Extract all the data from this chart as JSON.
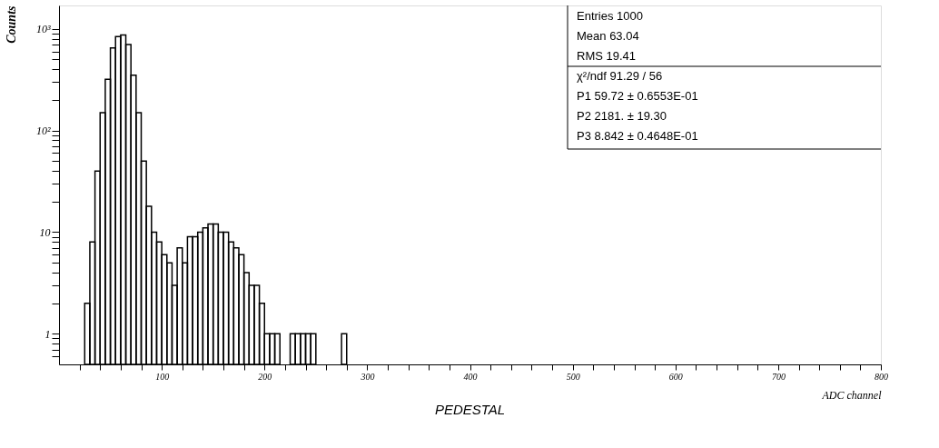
{
  "chart_data": {
    "type": "histogram",
    "title": "PEDESTAL",
    "xlabel": "ADC channel",
    "ylabel": "Counts",
    "bins": [
      20,
      25,
      30,
      35,
      40,
      45,
      50,
      55,
      60,
      65,
      70,
      75,
      80,
      85,
      90,
      95,
      100,
      105,
      110,
      115,
      120,
      125,
      130,
      135,
      140,
      145,
      150,
      155,
      160,
      165,
      170,
      175,
      180,
      185,
      190,
      195,
      200,
      205,
      210,
      215,
      220,
      225,
      230,
      235,
      240,
      245,
      250,
      255,
      260,
      265,
      270,
      275,
      280
    ],
    "values": [
      null,
      2,
      8,
      40,
      150,
      320,
      650,
      840,
      870,
      700,
      350,
      150,
      50,
      18,
      10,
      8,
      6,
      5,
      3,
      7,
      5,
      9,
      9,
      10,
      11,
      12,
      12,
      10,
      10,
      8,
      7,
      6,
      4,
      3,
      3,
      2,
      1,
      1,
      1,
      null,
      null,
      1,
      1,
      1,
      1,
      1,
      null,
      null,
      null,
      null,
      null,
      1
    ],
    "color": "#000000",
    "log": "y",
    "grid": false,
    "xlim": [
      0,
      800
    ],
    "xticks": [
      {
        "value": 20,
        "label": null
      },
      {
        "value": 40,
        "label": null
      },
      {
        "value": 60,
        "label": null
      },
      {
        "value": 80,
        "label": null
      },
      100,
      {
        "value": 120,
        "label": null
      },
      {
        "value": 140,
        "label": null
      },
      {
        "value": 160,
        "label": null
      },
      {
        "value": 180,
        "label": null
      },
      200,
      {
        "value": 220,
        "label": null
      },
      {
        "value": 240,
        "label": null
      },
      {
        "value": 260,
        "label": null
      },
      {
        "value": 280,
        "label": null
      },
      300,
      {
        "value": 320,
        "label": null
      },
      {
        "value": 340,
        "label": null
      },
      {
        "value": 360,
        "label": null
      },
      {
        "value": 380,
        "label": null
      },
      400,
      {
        "value": 420,
        "label": null
      },
      {
        "value": 440,
        "label": null
      },
      {
        "value": 460,
        "label": null
      },
      {
        "value": 480,
        "label": null
      },
      500,
      {
        "value": 520,
        "label": null
      },
      {
        "value": 540,
        "label": null
      },
      {
        "value": 560,
        "label": null
      },
      {
        "value": 580,
        "label": null
      },
      600,
      {
        "value": 620,
        "label": null
      },
      {
        "value": 640,
        "label": null
      },
      {
        "value": 660,
        "label": null
      },
      {
        "value": 680,
        "label": null
      },
      700,
      {
        "value": 720,
        "label": null
      },
      {
        "value": 740,
        "label": null
      },
      {
        "value": 760,
        "label": null
      },
      {
        "value": 780,
        "label": null
      },
      800
    ],
    "ylim": [
      0.5,
      1700
    ],
    "yticks": [
      {
        "value": 0.6,
        "label": null
      },
      {
        "value": 0.7,
        "label": null
      },
      {
        "value": 0.8,
        "label": null
      },
      {
        "value": 0.9,
        "label": null
      },
      1,
      {
        "value": 2,
        "label": null
      },
      {
        "value": 3,
        "label": null
      },
      {
        "value": 4,
        "label": null
      },
      {
        "value": 5,
        "label": null
      },
      {
        "value": 6,
        "label": null
      },
      {
        "value": 7,
        "label": null
      },
      {
        "value": 8,
        "label": null
      },
      {
        "value": 9,
        "label": null
      },
      10,
      {
        "value": 20,
        "label": null
      },
      {
        "value": 30,
        "label": null
      },
      {
        "value": 40,
        "label": null
      },
      {
        "value": 50,
        "label": null
      },
      {
        "value": 60,
        "label": null
      },
      {
        "value": 70,
        "label": null
      },
      {
        "value": 80,
        "label": null
      },
      {
        "value": 90,
        "label": null
      },
      {
        "value": 100,
        "label": "10²"
      },
      {
        "value": 200,
        "label": null
      },
      {
        "value": 300,
        "label": null
      },
      {
        "value": 400,
        "label": null
      },
      {
        "value": 500,
        "label": null
      },
      {
        "value": 600,
        "label": null
      },
      {
        "value": 700,
        "label": null
      },
      {
        "value": 800,
        "label": null
      },
      {
        "value": 900,
        "label": null
      },
      {
        "value": 1000,
        "label": "10³"
      }
    ],
    "annotations": [
      "Entries 1000",
      "Mean 63.04",
      "RMS 19.41",
      "χ²/ndf 91.29 / 56",
      "P1 59.72 ± 0.6553E-01",
      "P2 2181. ± 19.30",
      "P3 8.842 ± 0.4648E-01"
    ]
  }
}
